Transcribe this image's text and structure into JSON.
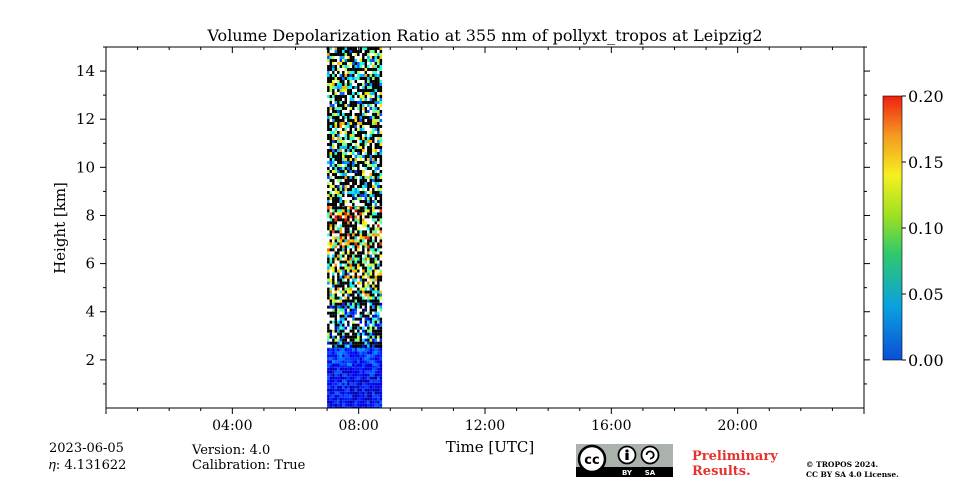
{
  "chart_data": {
    "type": "heatmap",
    "title": "Volume Depolarization Ratio at 355 nm of pollyxt_tropos at Leipzig2",
    "xlabel": "Time [UTC]",
    "ylabel": "Height [km]",
    "x_range_hours": [
      0,
      24
    ],
    "x_ticks": [
      {
        "hour": 4,
        "label": "04:00"
      },
      {
        "hour": 8,
        "label": "08:00"
      },
      {
        "hour": 12,
        "label": "12:00"
      },
      {
        "hour": 16,
        "label": "16:00"
      },
      {
        "hour": 20,
        "label": "20:00"
      }
    ],
    "ylim": [
      0,
      15
    ],
    "y_ticks": [
      2,
      4,
      6,
      8,
      10,
      12,
      14
    ],
    "y_tick_labels": [
      "2",
      "4",
      "6",
      "8",
      "10",
      "12",
      "14"
    ],
    "colorbar": {
      "vmin": 0.0,
      "vmax": 0.2,
      "colormap": "jet",
      "ticks": [
        0.0,
        0.05,
        0.1,
        0.15,
        0.2
      ],
      "tick_labels": [
        "0.00",
        "0.05",
        "0.10",
        "0.15",
        "0.20"
      ]
    },
    "data_window_hours": [
      7.0,
      8.7
    ],
    "profile_bands": [
      {
        "height_km": [
          0.0,
          1.8
        ],
        "value": 0.025
      },
      {
        "height_km": [
          1.8,
          2.6
        ],
        "value": 0.035
      },
      {
        "height_km": [
          2.6,
          4.5
        ],
        "value": 0.06
      },
      {
        "height_km": [
          4.5,
          6.5
        ],
        "value": 0.1
      },
      {
        "height_km": [
          6.5,
          8.5
        ],
        "value": 0.12
      },
      {
        "height_km": [
          8.5,
          15.0
        ],
        "value": 0.09
      }
    ],
    "grid": false,
    "legend": "none"
  },
  "info": {
    "date": "2023-06-05",
    "eta": "𝜂: 4.131622",
    "version": "Version: 4.0",
    "calibration": "Calibration: True"
  },
  "footer": {
    "preliminary_line1": "Preliminary",
    "preliminary_line2": "Results.",
    "copyright_line1": "© TROPOS 2024.",
    "copyright_line2": "CC BY SA 4.0 License.",
    "badge_icon": "cc-by-sa-icon",
    "badge_text_by": "BY",
    "badge_text_sa": "SA"
  },
  "colors": {
    "preliminary": "#e8302e",
    "background": "#ffffff"
  }
}
